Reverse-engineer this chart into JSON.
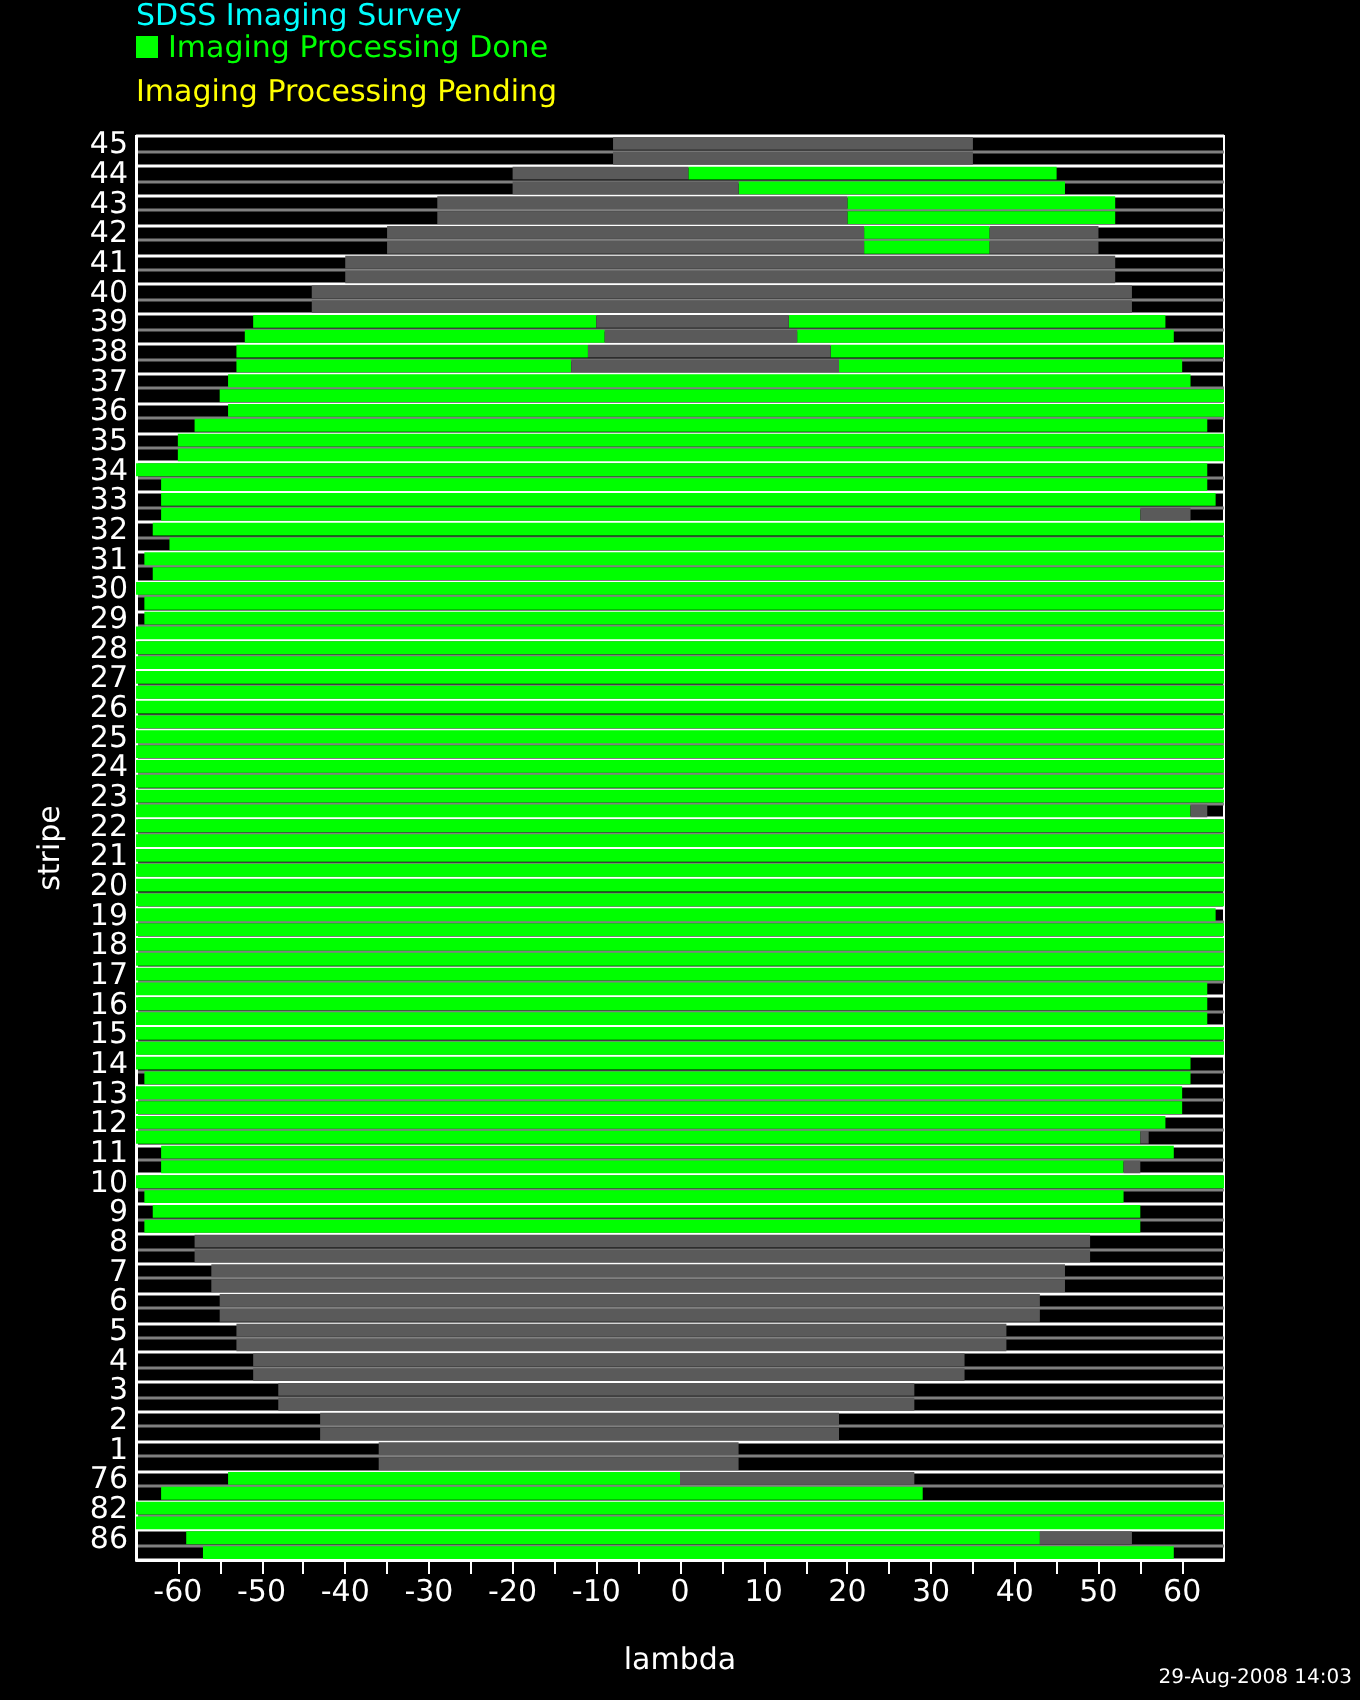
{
  "chart_data": {
    "type": "bar",
    "orientation": "horizontal",
    "title": "SDSS Imaging Survey",
    "xlabel": "lambda",
    "ylabel": "stripe",
    "annotations": [
      "Imaging Processing Pending",
      "29-Aug-2008 14:03"
    ],
    "categories": [
      "45",
      null,
      "44",
      null,
      "43",
      null,
      "42",
      null,
      "41",
      null,
      "40",
      null,
      "39",
      null,
      "38",
      null,
      "37",
      null,
      "36",
      null,
      "35",
      null,
      "34",
      null,
      "33",
      null,
      "32",
      null,
      "31",
      null,
      "30",
      null,
      "29",
      null,
      "28",
      null,
      "27",
      null,
      "26",
      null,
      "25",
      null,
      "24",
      null,
      "23",
      null,
      "22",
      null,
      "21",
      null,
      "20",
      null,
      "19",
      null,
      "18",
      null,
      "17",
      null,
      "16",
      null,
      "15",
      null,
      "14",
      null,
      "13",
      null,
      "12",
      null,
      "11",
      null,
      "10",
      null,
      "9",
      null,
      "8",
      null,
      "7",
      null,
      "6",
      null,
      "5",
      null,
      "4",
      null,
      "3",
      null,
      "2",
      null,
      "1",
      null,
      "76",
      null,
      "82",
      null,
      "86",
      null
    ],
    "xlim": [
      -65,
      65
    ],
    "xticks": [
      -60,
      {
        "value": -55,
        "label": null
      },
      -50,
      {
        "value": -45,
        "label": null
      },
      -40,
      {
        "value": -35,
        "label": null
      },
      -30,
      {
        "value": -25,
        "label": null
      },
      -20,
      {
        "value": -15,
        "label": null
      },
      -10,
      {
        "value": -5,
        "label": null
      },
      0,
      {
        "value": 5,
        "label": null
      },
      10,
      {
        "value": 15,
        "label": null
      },
      20,
      {
        "value": 25,
        "label": null
      },
      30,
      {
        "value": 35,
        "label": null
      },
      40,
      {
        "value": 45,
        "label": null
      },
      50,
      {
        "value": 55,
        "label": null
      },
      60
    ],
    "grid": "y",
    "legend": "top left",
    "series": [
      {
        "name": "Imaging Processing Done",
        "color": "#00ff00",
        "base": [
          null,
          null,
          1,
          7,
          20,
          20,
          22,
          22,
          null,
          null,
          null,
          null,
          -51,
          -52,
          -53,
          -53,
          -54,
          -55,
          -54,
          -58,
          -60,
          -60,
          -65,
          -62,
          -62,
          -62,
          -63,
          -61,
          -64,
          -63,
          -65,
          -64,
          -64,
          -65,
          -65,
          -65,
          -65,
          -65,
          -65,
          -65,
          -65,
          -65,
          -65,
          -65,
          -65,
          -65,
          -65,
          -65,
          -65,
          -65,
          -65,
          -65,
          -65,
          -65,
          -65,
          -65,
          -65,
          -65,
          -65,
          -65,
          -65,
          -65,
          -65,
          -64,
          -65,
          -65,
          -65,
          -65,
          -62,
          -62,
          -65,
          -64,
          -63,
          -64,
          null,
          null,
          null,
          null,
          null,
          null,
          null,
          null,
          null,
          null,
          null,
          null,
          null,
          null,
          null,
          null,
          -54,
          -62,
          -65,
          -65,
          -59,
          -57
        ],
        "values": [
          null,
          null,
          44,
          39,
          32,
          32,
          15,
          15,
          null,
          null,
          null,
          null,
          41,
          43,
          42,
          40,
          115,
          120,
          119,
          121,
          125,
          125,
          128,
          125,
          126,
          117,
          128,
          126,
          129,
          128,
          130,
          129,
          129,
          130,
          130,
          130,
          130,
          130,
          130,
          130,
          130,
          130,
          130,
          130,
          130,
          126,
          130,
          130,
          130,
          130,
          130,
          130,
          129,
          130,
          130,
          130,
          130,
          128,
          128,
          128,
          130,
          130,
          126,
          125,
          125,
          125,
          123,
          120,
          121,
          115,
          130,
          117,
          118,
          119,
          null,
          null,
          null,
          null,
          null,
          null,
          null,
          null,
          null,
          null,
          null,
          null,
          null,
          null,
          null,
          null,
          54,
          91,
          130,
          130,
          102,
          116
        ]
      },
      {
        "color": "#00ff00",
        "base": [
          null,
          null,
          null,
          null,
          null,
          null,
          null,
          null,
          null,
          null,
          null,
          null,
          13,
          14,
          18,
          19,
          null,
          null,
          null,
          null,
          null,
          null,
          null,
          null,
          null,
          null,
          null,
          null,
          null,
          null,
          null,
          null,
          null,
          null,
          null,
          null,
          null,
          null,
          null,
          null,
          null,
          null,
          null,
          null,
          null,
          null,
          null,
          null,
          null,
          null,
          null,
          null,
          null,
          null,
          null,
          null,
          null,
          null,
          null,
          null,
          null,
          null,
          null,
          null,
          null,
          null,
          null,
          null,
          null,
          null,
          null,
          null,
          null,
          null,
          null,
          null,
          null,
          null,
          null,
          null,
          null,
          null,
          null,
          null,
          null,
          null,
          null,
          null,
          null,
          null,
          null,
          null,
          null,
          null,
          null,
          null
        ],
        "values": [
          null,
          null,
          null,
          null,
          null,
          null,
          null,
          null,
          null,
          null,
          null,
          null,
          45,
          45,
          47,
          41,
          null,
          null,
          null,
          null,
          null,
          null,
          null,
          null,
          null,
          null,
          null,
          null,
          null,
          null,
          null,
          null,
          null,
          null,
          null,
          null,
          null,
          null,
          null,
          null,
          null,
          null,
          null,
          null,
          null,
          null,
          null,
          null,
          null,
          null,
          null,
          null,
          null,
          null,
          null,
          null,
          null,
          null,
          null,
          null,
          null,
          null,
          null,
          null,
          null,
          null,
          null,
          null,
          null,
          null,
          null,
          null,
          null,
          null,
          null,
          null,
          null,
          null,
          null,
          null,
          null,
          null,
          null,
          null,
          null,
          null,
          null,
          null,
          null,
          null,
          null,
          null,
          null,
          null,
          null,
          null
        ]
      },
      {
        "color": "#5a5a5a",
        "base": [
          -8,
          -8,
          -20,
          -20,
          -29,
          -29,
          -35,
          -35,
          -40,
          -40,
          -44,
          -44,
          -10,
          -9,
          -11,
          -13,
          null,
          null,
          null,
          null,
          null,
          null,
          null,
          null,
          null,
          55,
          null,
          null,
          null,
          null,
          null,
          null,
          null,
          null,
          null,
          null,
          null,
          null,
          null,
          null,
          null,
          null,
          null,
          null,
          null,
          61,
          null,
          null,
          null,
          null,
          null,
          null,
          null,
          null,
          null,
          null,
          null,
          null,
          null,
          null,
          null,
          null,
          null,
          null,
          null,
          null,
          null,
          55,
          null,
          53,
          null,
          null,
          null,
          null,
          -58,
          -58,
          -56,
          -56,
          -55,
          -55,
          -53,
          -53,
          -51,
          -51,
          -48,
          -48,
          -43,
          -43,
          -36,
          -36,
          0,
          null,
          null,
          null,
          43,
          null
        ],
        "values": [
          43,
          43,
          21,
          27,
          49,
          49,
          57,
          57,
          92,
          92,
          98,
          98,
          23,
          23,
          29,
          32,
          null,
          null,
          null,
          null,
          null,
          null,
          null,
          null,
          null,
          6,
          null,
          null,
          null,
          null,
          null,
          null,
          null,
          null,
          null,
          null,
          null,
          null,
          null,
          null,
          null,
          null,
          null,
          null,
          null,
          2,
          null,
          null,
          null,
          null,
          null,
          null,
          null,
          null,
          null,
          null,
          null,
          null,
          null,
          null,
          null,
          null,
          null,
          null,
          null,
          null,
          null,
          1,
          null,
          2,
          null,
          null,
          null,
          null,
          107,
          107,
          102,
          102,
          98,
          98,
          92,
          92,
          85,
          85,
          76,
          76,
          62,
          62,
          43,
          43,
          28,
          null,
          null,
          null,
          11,
          null
        ]
      },
      {
        "color": "#5a5a5a",
        "base": [
          null,
          null,
          null,
          null,
          null,
          null,
          37,
          37,
          null,
          null,
          null,
          null,
          null,
          null,
          null,
          null,
          null,
          null,
          null,
          null,
          null,
          null,
          null,
          null,
          null,
          null,
          null,
          null,
          null,
          null,
          null,
          null,
          null,
          null,
          null,
          null,
          null,
          null,
          null,
          null,
          null,
          null,
          null,
          null,
          null,
          null,
          null,
          null,
          null,
          null,
          null,
          null,
          null,
          null,
          null,
          null,
          null,
          null,
          null,
          null,
          null,
          null,
          null,
          null,
          null,
          null,
          null,
          null,
          null,
          null,
          null,
          null,
          null,
          null,
          null,
          null,
          null,
          null,
          null,
          null,
          null,
          null,
          null,
          null,
          null,
          null,
          null,
          null,
          null,
          null,
          null,
          null,
          null,
          null,
          null,
          null
        ],
        "values": [
          null,
          null,
          null,
          null,
          null,
          null,
          13,
          13,
          null,
          null,
          null,
          null,
          null,
          null,
          null,
          null,
          null,
          null,
          null,
          null,
          null,
          null,
          null,
          null,
          null,
          null,
          null,
          null,
          null,
          null,
          null,
          null,
          null,
          null,
          null,
          null,
          null,
          null,
          null,
          null,
          null,
          null,
          null,
          null,
          null,
          null,
          null,
          null,
          null,
          null,
          null,
          null,
          null,
          null,
          null,
          null,
          null,
          null,
          null,
          null,
          null,
          null,
          null,
          null,
          null,
          null,
          null,
          null,
          null,
          null,
          null,
          null,
          null,
          null,
          null,
          null,
          null,
          null,
          null,
          null,
          null,
          null,
          null,
          null,
          null,
          null,
          null,
          null,
          null,
          null,
          null,
          null,
          null,
          null,
          null,
          null
        ]
      }
    ]
  }
}
